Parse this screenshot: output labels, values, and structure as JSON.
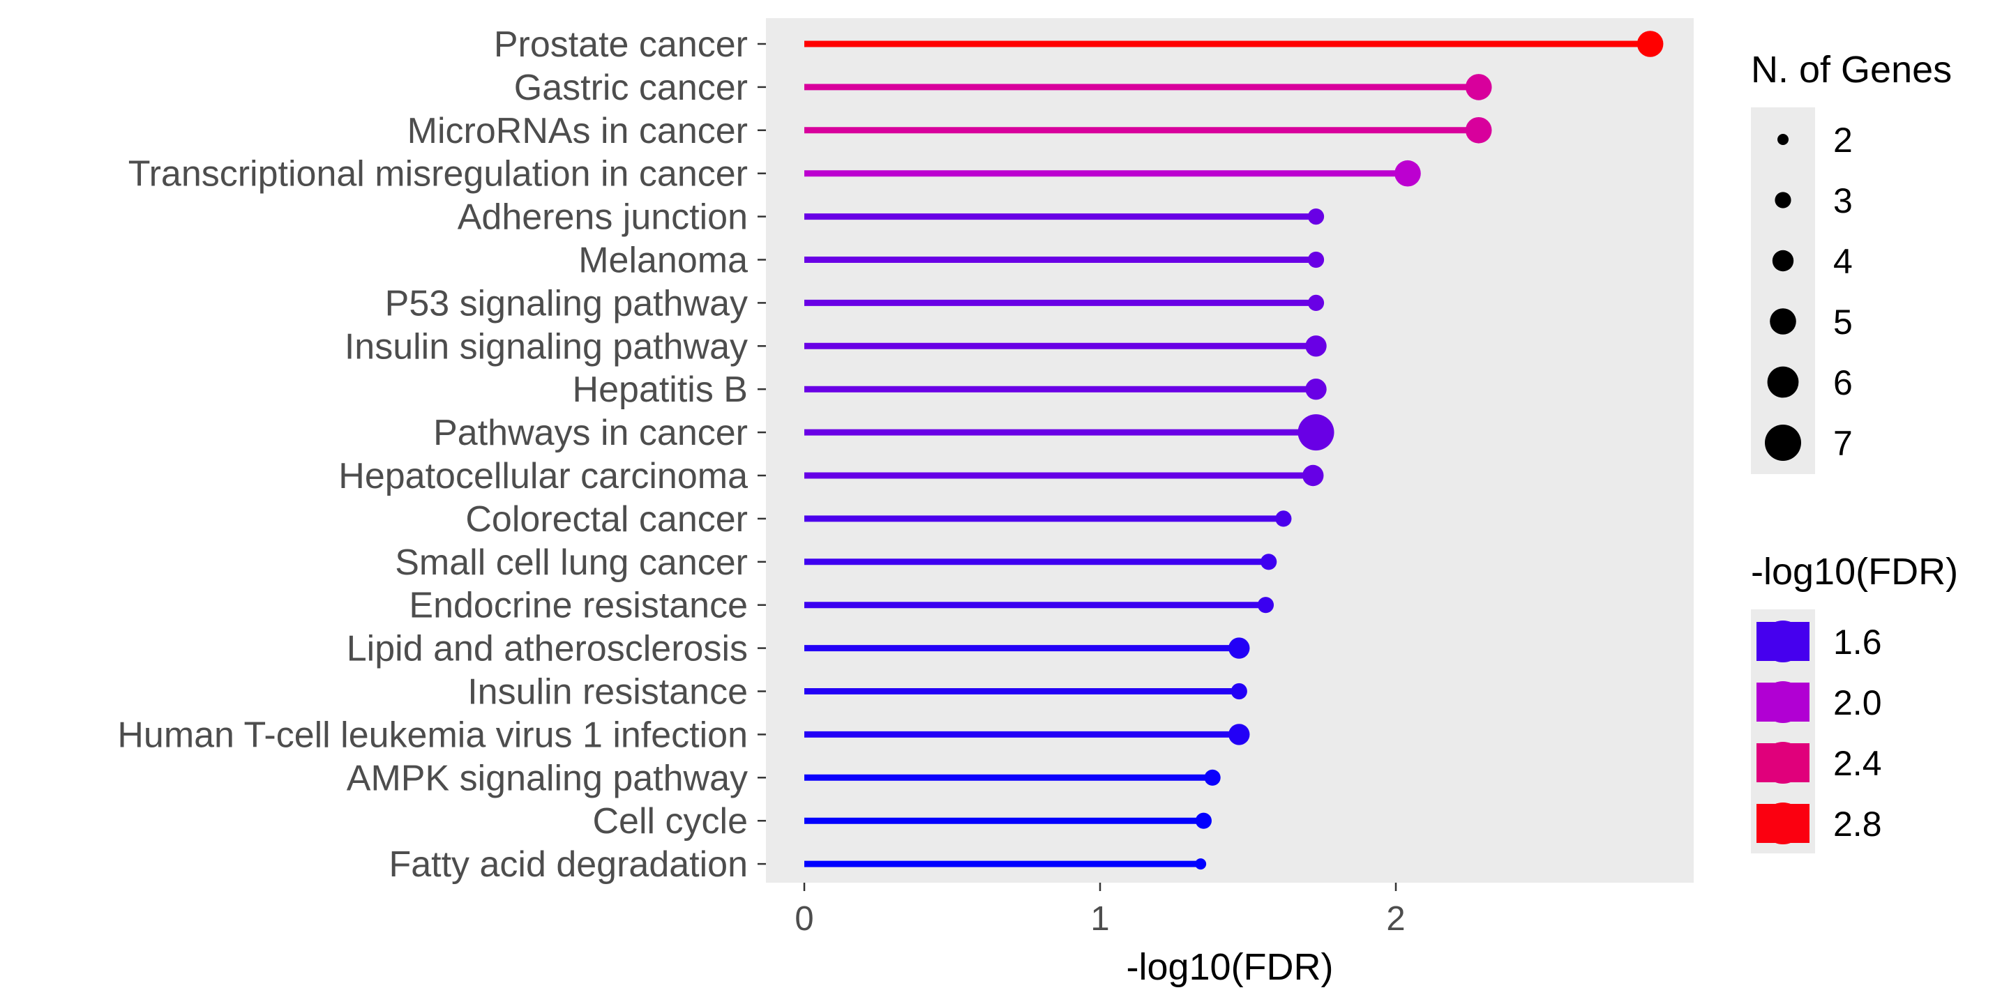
{
  "chart_data": {
    "type": "lollipop",
    "title": "",
    "xlabel": "-log10(FDR)",
    "ylabel": "",
    "xlim": [
      -0.14,
      3.0
    ],
    "xticks": [
      0,
      1,
      2
    ],
    "tick_labels": [
      "0",
      "1",
      "2"
    ],
    "grid": false,
    "panel_background": "#ebebeb",
    "categories": [
      "Prostate cancer",
      "Gastric cancer",
      "MicroRNAs in cancer",
      "Transcriptional misregulation in cancer",
      "Adherens junction",
      "Melanoma",
      "P53 signaling pathway",
      "Insulin signaling pathway",
      "Hepatitis B",
      "Pathways in cancer",
      "Hepatocellular carcinoma",
      "Colorectal cancer",
      "Small cell lung cancer",
      "Endocrine resistance",
      "Lipid and atherosclerosis",
      "Insulin resistance",
      "Human T-cell leukemia virus 1 infection",
      "AMPK signaling pathway",
      "Cell cycle",
      "Fatty acid degradation"
    ],
    "values": [
      2.86,
      2.28,
      2.28,
      2.04,
      1.73,
      1.73,
      1.73,
      1.73,
      1.73,
      1.73,
      1.72,
      1.62,
      1.57,
      1.56,
      1.47,
      1.47,
      1.47,
      1.38,
      1.35,
      1.34
    ],
    "gene_counts": [
      5,
      5,
      5,
      5,
      3,
      3,
      3,
      4,
      4,
      7,
      4,
      3,
      3,
      3,
      4,
      3,
      4,
      3,
      3,
      2
    ],
    "legend_size": {
      "title": "N. of Genes",
      "entries": [
        "2",
        "3",
        "4",
        "5",
        "6",
        "7"
      ],
      "values": [
        2,
        3,
        4,
        5,
        6,
        7
      ]
    },
    "legend_color": {
      "title": "-log10(FDR)",
      "entries": [
        "1.6",
        "2.0",
        "2.4",
        "2.8"
      ],
      "values": [
        1.6,
        2.0,
        2.4,
        2.8
      ]
    },
    "color_scale": {
      "low": "#0000ff",
      "mid": "#cc00cc",
      "high": "#ff0000",
      "min": 1.34,
      "max": 2.86
    },
    "legend_position": "right"
  }
}
